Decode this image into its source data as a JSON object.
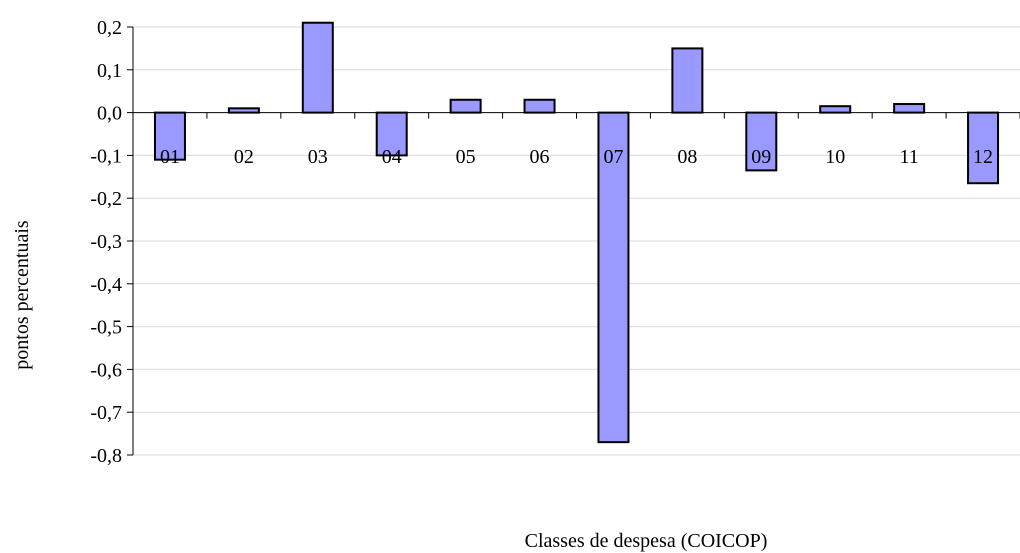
{
  "chart_data": {
    "type": "bar",
    "categories": [
      "01",
      "02",
      "03",
      "04",
      "05",
      "06",
      "07",
      "08",
      "09",
      "10",
      "11",
      "12"
    ],
    "values": [
      -0.11,
      0.01,
      0.21,
      -0.1,
      0.03,
      0.03,
      -0.77,
      0.15,
      -0.135,
      0.015,
      0.02,
      -0.165
    ],
    "xlabel": "Classes de despesa (COICOP)",
    "ylabel": "pontos percentuais",
    "ylim": [
      -0.8,
      0.2
    ],
    "yticks": [
      "0,2",
      "0,1",
      "0,0",
      "-0,1",
      "-0,2",
      "-0,3",
      "-0,4",
      "-0,5",
      "-0,6",
      "-0,7",
      "-0,8"
    ],
    "ytick_values": [
      0.2,
      0.1,
      0.0,
      -0.1,
      -0.2,
      -0.3,
      -0.4,
      -0.5,
      -0.6,
      -0.7,
      -0.8
    ],
    "grid": true,
    "bar_color": "#9999ff"
  }
}
